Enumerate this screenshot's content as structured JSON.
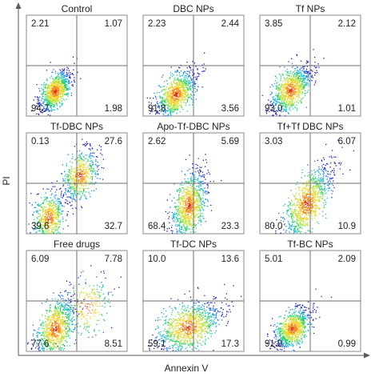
{
  "chart_data": {
    "type": "scatter",
    "xlabel": "Annexin V",
    "ylabel": "PI",
    "panels": [
      {
        "title": "Control",
        "quadrants": {
          "upper_left": "2.21",
          "upper_right": "1.07",
          "lower_left": "94.7",
          "lower_right": "1.98"
        }
      },
      {
        "title": "DBC NPs",
        "quadrants": {
          "upper_left": "2.23",
          "upper_right": "2.44",
          "lower_left": "91.8",
          "lower_right": "3.56"
        }
      },
      {
        "title": "Tf NPs",
        "quadrants": {
          "upper_left": "3.85",
          "upper_right": "2.12",
          "lower_left": "93.0",
          "lower_right": "1.01"
        }
      },
      {
        "title": "Tf-DBC NPs",
        "quadrants": {
          "upper_left": "0.13",
          "upper_right": "27.6",
          "lower_left": "39.6",
          "lower_right": "32.7"
        }
      },
      {
        "title": "Apo-Tf-DBC NPs",
        "quadrants": {
          "upper_left": "2.62",
          "upper_right": "5.69",
          "lower_left": "68.4",
          "lower_right": "23.3"
        }
      },
      {
        "title": "Tf+Tf DBC NPs",
        "quadrants": {
          "upper_left": "3.03",
          "upper_right": "6.07",
          "lower_left": "80.0",
          "lower_right": "10.9"
        }
      },
      {
        "title": "Free drugs",
        "quadrants": {
          "upper_left": "6.09",
          "upper_right": "7.78",
          "lower_left": "77.6",
          "lower_right": "8.51"
        }
      },
      {
        "title": "Tf-DC NPs",
        "quadrants": {
          "upper_left": "10.0",
          "upper_right": "13.6",
          "lower_left": "59.1",
          "lower_right": "17.3"
        }
      },
      {
        "title": "Tf-BC NPs",
        "quadrants": {
          "upper_left": "5.01",
          "upper_right": "2.09",
          "lower_left": "91.9",
          "lower_right": "0.99"
        }
      }
    ],
    "grid": false,
    "colors": {
      "frame": "#8a8a8a",
      "gate": "#6f6f6f",
      "axis": "#5a5a5a",
      "density_scale": [
        "#1a1ab8",
        "#1f6fe6",
        "#19b8d6",
        "#2fd06a",
        "#b9e33a",
        "#f5d22a",
        "#f08a1c",
        "#e0261c"
      ]
    }
  }
}
